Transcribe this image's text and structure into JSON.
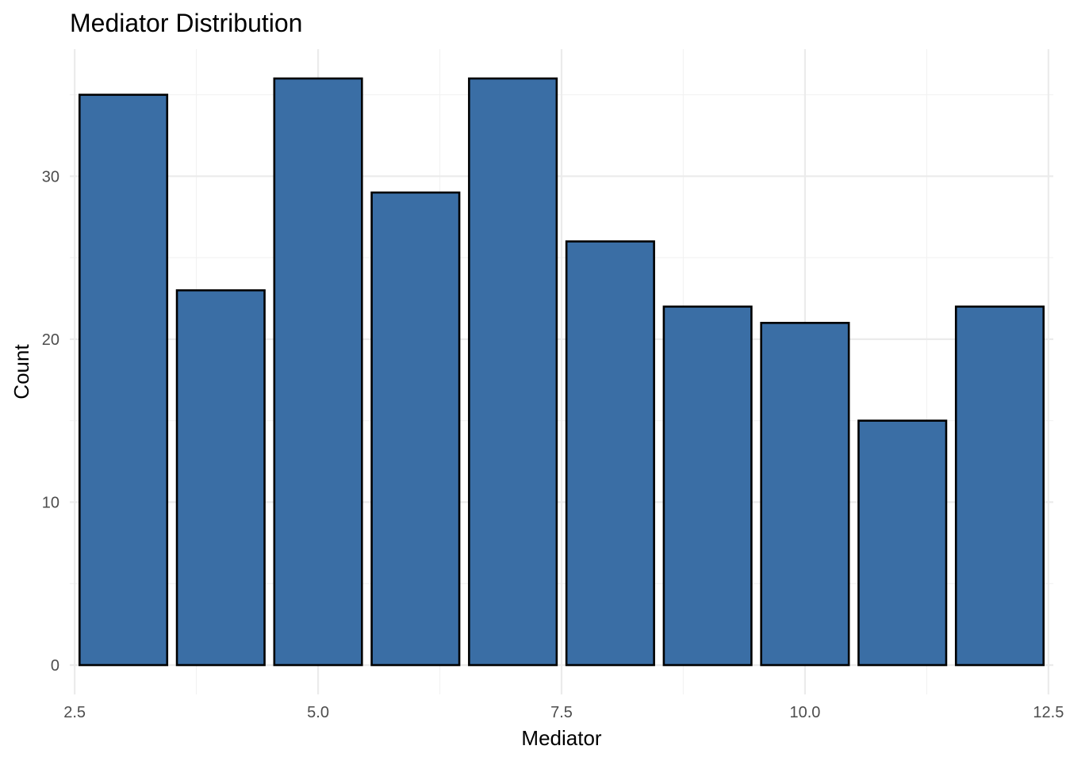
{
  "chart_data": {
    "type": "bar",
    "title": "Mediator Distribution",
    "xlabel": "Mediator",
    "ylabel": "Count",
    "x": [
      3,
      4,
      5,
      6,
      7,
      8,
      9,
      10,
      11,
      12
    ],
    "values": [
      35,
      23,
      36,
      29,
      36,
      26,
      22,
      21,
      15,
      22
    ],
    "bin_width": 0.9,
    "xlim": [
      2.45,
      12.55
    ],
    "ylim": [
      -1.8,
      37.8
    ],
    "x_ticks": [
      2.5,
      5.0,
      7.5,
      10.0,
      12.5
    ],
    "x_tick_labels": [
      "2.5",
      "5.0",
      "7.5",
      "10.0",
      "12.5"
    ],
    "x_minor_ticks": [
      3.75,
      6.25,
      8.75,
      11.25
    ],
    "y_ticks": [
      0,
      10,
      20,
      30
    ],
    "y_tick_labels": [
      "0",
      "10",
      "20",
      "30"
    ],
    "y_minor_ticks": [
      5,
      15,
      25,
      35
    ],
    "grid": true,
    "bar_color": "#3A6EA5",
    "bar_outline_color": "#000000"
  }
}
